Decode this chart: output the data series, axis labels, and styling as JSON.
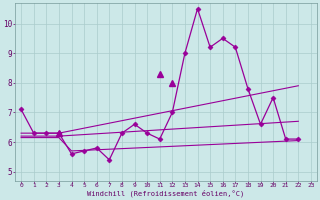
{
  "xlabel": "Windchill (Refroidissement éolien,°C)",
  "bg_color": "#cce8e8",
  "grid_color": "#aacccc",
  "line_color": "#990099",
  "xlim": [
    -0.5,
    23.5
  ],
  "ylim": [
    4.7,
    10.7
  ],
  "yticks": [
    5,
    6,
    7,
    8,
    9,
    10
  ],
  "xticks": [
    0,
    1,
    2,
    3,
    4,
    5,
    6,
    7,
    8,
    9,
    10,
    11,
    12,
    13,
    14,
    15,
    16,
    17,
    18,
    19,
    20,
    21,
    22,
    23
  ],
  "series_main": {
    "x": [
      0,
      1,
      2,
      3,
      4,
      5,
      6,
      7,
      8,
      9,
      10,
      11,
      12,
      13,
      14,
      15,
      16,
      17,
      18,
      19,
      20,
      21,
      22
    ],
    "y": [
      7.1,
      6.3,
      6.3,
      6.3,
      5.6,
      5.7,
      5.8,
      5.4,
      6.3,
      6.6,
      6.3,
      6.1,
      7.0,
      9.0,
      10.5,
      9.2,
      9.5,
      9.2,
      7.8,
      6.6,
      7.5,
      6.1,
      6.1
    ],
    "marker": "D",
    "markersize": 2.5,
    "linewidth": 1.0
  },
  "series_triangles": {
    "x": [
      3,
      11,
      12
    ],
    "y": [
      6.3,
      8.3,
      8.0
    ],
    "marker": "^",
    "markersize": 4,
    "linewidth": 0
  },
  "series_lines": [
    {
      "x": [
        0,
        3,
        22
      ],
      "y": [
        6.3,
        6.3,
        7.9
      ]
    },
    {
      "x": [
        0,
        3,
        22
      ],
      "y": [
        6.2,
        6.2,
        6.7
      ]
    },
    {
      "x": [
        0,
        3,
        4,
        22
      ],
      "y": [
        6.15,
        6.15,
        5.7,
        6.05
      ]
    }
  ]
}
